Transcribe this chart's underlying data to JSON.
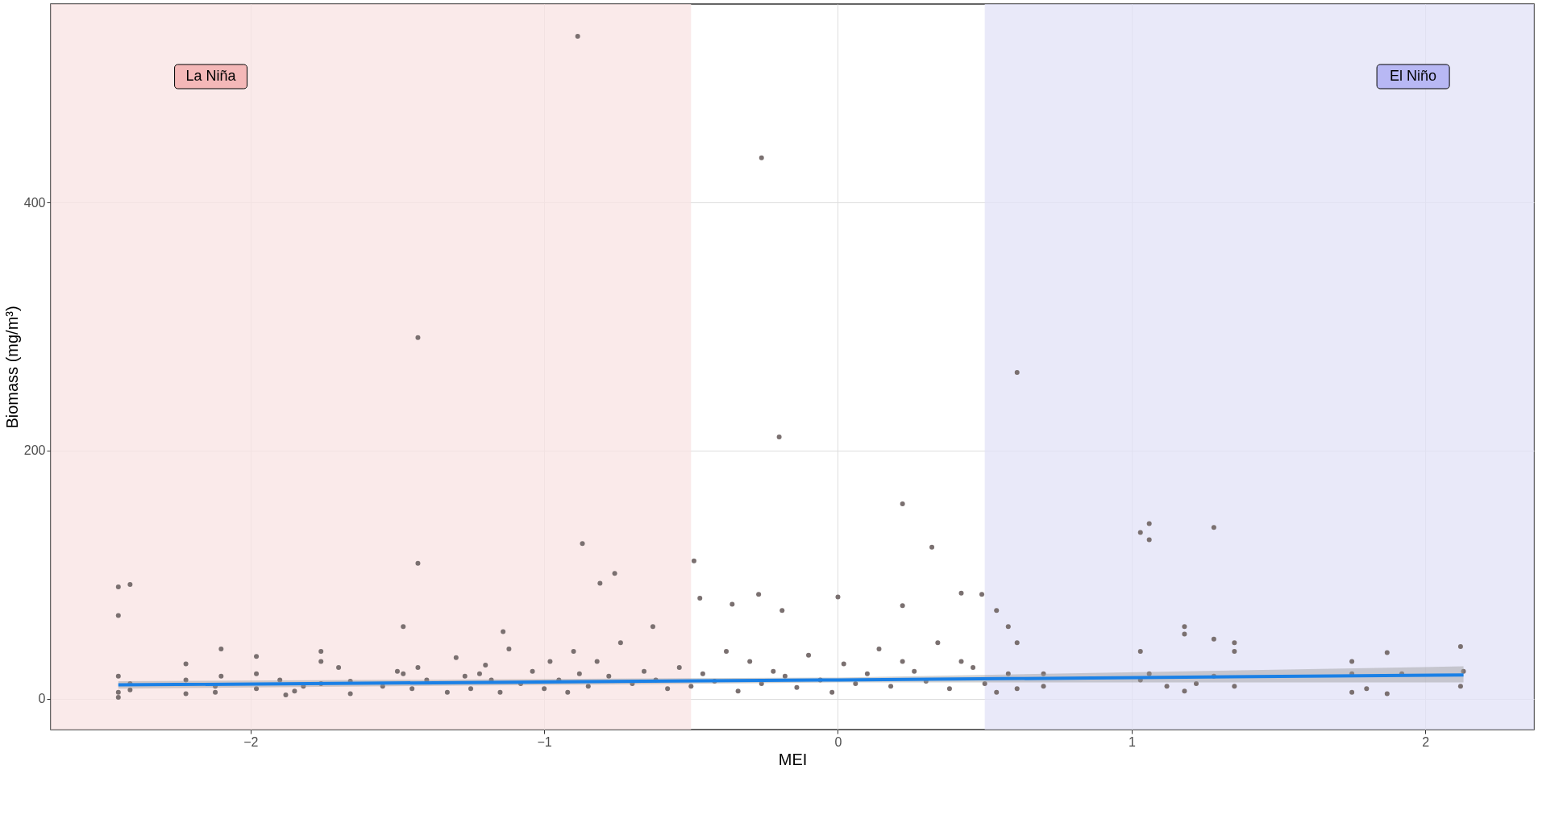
{
  "chart_data": {
    "type": "scatter",
    "xlabel": "MEI",
    "ylabel": "Biomass (mg/m³)",
    "xlim": [
      -2.68,
      2.37
    ],
    "ylim": [
      -25,
      560
    ],
    "xticks": [
      -2,
      -1,
      0,
      1,
      2
    ],
    "yticks": [
      0,
      200,
      400
    ],
    "grid": true,
    "bands": [
      {
        "axis": "x",
        "from": -2.68,
        "to": -0.5,
        "label": "La Niña",
        "color": "#f8e3e3"
      },
      {
        "axis": "x",
        "from": 0.5,
        "to": 2.37,
        "label": "El Niño",
        "color": "#e1e1f7"
      }
    ],
    "series": [
      {
        "marker": "circle",
        "color": "#7a7070",
        "x": [
          -0.886,
          -0.26,
          -1.43,
          -0.2,
          0.61,
          0.22,
          0.32,
          1.06,
          1.03,
          1.06,
          1.28,
          -0.87,
          -0.49,
          -1.43,
          -0.76,
          -0.81,
          -2.45,
          -2.41,
          -2.45,
          -0.47,
          -0.27,
          0,
          0.42,
          0.49,
          -0.36,
          0.22,
          -0.19,
          0.54,
          -1.48,
          -1.14,
          -0.63,
          0.58,
          1.18,
          0.61,
          1.35,
          1.35,
          1.28,
          1.03,
          1.18,
          2.12,
          1.87,
          1.75,
          -2.45,
          -2.45,
          -2.45,
          -2.41,
          -2.41,
          -2.22,
          -2.22,
          -2.22,
          -2.1,
          -2.1,
          -2.12,
          -2.12,
          -1.98,
          -1.98,
          -1.98,
          -1.9,
          -1.88,
          -1.85,
          -1.82,
          -1.76,
          -1.76,
          -1.76,
          -1.7,
          -1.66,
          -1.66,
          -1.55,
          -1.5,
          -1.48,
          -1.45,
          -1.43,
          -1.4,
          -1.33,
          -1.3,
          -1.27,
          -1.25,
          -1.22,
          -1.2,
          -1.18,
          -1.15,
          -1.12,
          -1.08,
          -1.04,
          -1.0,
          -0.98,
          -0.95,
          -0.92,
          -0.9,
          -0.88,
          -0.85,
          -0.82,
          -0.78,
          -0.74,
          -0.7,
          -0.66,
          -0.62,
          -0.58,
          -0.54,
          -0.5,
          -0.46,
          -0.42,
          -0.38,
          -0.34,
          -0.3,
          -0.26,
          -0.22,
          -0.18,
          -0.14,
          -0.1,
          -0.06,
          -0.02,
          0.02,
          0.06,
          0.1,
          0.14,
          0.18,
          0.22,
          0.26,
          0.3,
          0.34,
          0.38,
          0.42,
          0.46,
          0.5,
          0.54,
          0.58,
          0.61,
          0.7,
          0.7,
          1.03,
          1.06,
          1.12,
          1.18,
          1.22,
          1.28,
          1.35,
          1.75,
          1.75,
          1.8,
          1.87,
          1.92,
          2.12,
          2.13
        ],
        "values": [
          534,
          436,
          291,
          211,
          263,
          157,
          122,
          141,
          134,
          128,
          138,
          125,
          111,
          109,
          101,
          93,
          90,
          92,
          67,
          81,
          84,
          82,
          85,
          84,
          76,
          75,
          71,
          71,
          58,
          54,
          58,
          58,
          58,
          45,
          45,
          38,
          48,
          38,
          52,
          42,
          37,
          30,
          18,
          5,
          1,
          12,
          7,
          28,
          15,
          4,
          40,
          18,
          5,
          10,
          34,
          20,
          8,
          15,
          3,
          6,
          10,
          38,
          30,
          12,
          25,
          14,
          4,
          10,
          22,
          20,
          8,
          25,
          15,
          5,
          33,
          18,
          8,
          20,
          27,
          15,
          5,
          40,
          12,
          22,
          8,
          30,
          15,
          5,
          38,
          20,
          10,
          30,
          18,
          45,
          12,
          22,
          15,
          8,
          25,
          10,
          20,
          14,
          38,
          6,
          30,
          12,
          22,
          18,
          9,
          35,
          15,
          5,
          28,
          12,
          20,
          40,
          10,
          30,
          22,
          14,
          45,
          8,
          30,
          25,
          12,
          5,
          20,
          8,
          20,
          10,
          15,
          20,
          10,
          6,
          12,
          18,
          10,
          20,
          5,
          8,
          4,
          20,
          10,
          22
        ]
      },
      {
        "type": "line",
        "marker": "none",
        "color": "#1a80e6",
        "x": [
          -2.45,
          0,
          2.13
        ],
        "values": [
          11,
          15,
          19
        ],
        "lower": [
          8,
          13,
          13
        ],
        "upper": [
          14,
          17,
          26
        ]
      }
    ]
  }
}
